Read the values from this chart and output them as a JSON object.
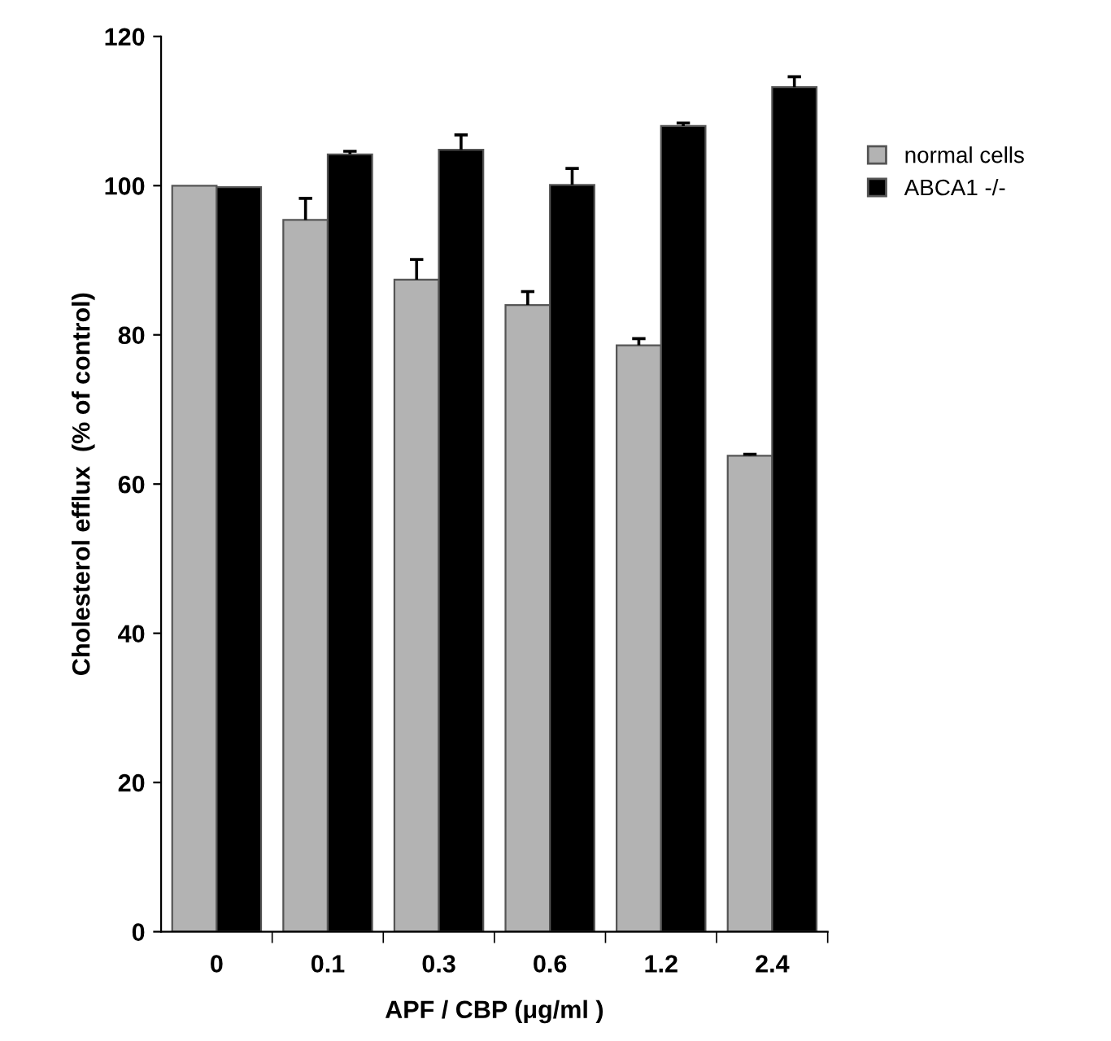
{
  "chart_data": {
    "type": "bar",
    "xlabel": "APF / CBP (μg/ml )",
    "ylabel": "Cholesterol efflux  (% of control)",
    "categories": [
      "0",
      "0.1",
      "0.3",
      "0.6",
      "1.2",
      "2.4"
    ],
    "series": [
      {
        "name": "normal cells",
        "color": "#b3b3b3",
        "values": [
          100,
          95.4,
          87.4,
          84.0,
          78.6,
          63.8
        ],
        "errors": [
          null,
          [
            95.4,
            98.3
          ],
          [
            87.4,
            90.1
          ],
          [
            84.0,
            85.8
          ],
          [
            78.6,
            79.5
          ],
          [
            63.8,
            64.0
          ]
        ]
      },
      {
        "name": "ABCA1 -/-",
        "color": "#000000",
        "values": [
          99.8,
          104.2,
          104.8,
          100.1,
          108.0,
          113.2
        ],
        "errors": [
          null,
          [
            104.2,
            104.6
          ],
          [
            104.8,
            106.8
          ],
          [
            100.1,
            102.3
          ],
          [
            108.0,
            108.4
          ],
          [
            113.2,
            114.6
          ]
        ]
      }
    ],
    "ylim": [
      0,
      120
    ],
    "yticks": [
      0,
      20,
      40,
      60,
      80,
      100,
      120
    ],
    "grid": false,
    "legend": "right"
  }
}
